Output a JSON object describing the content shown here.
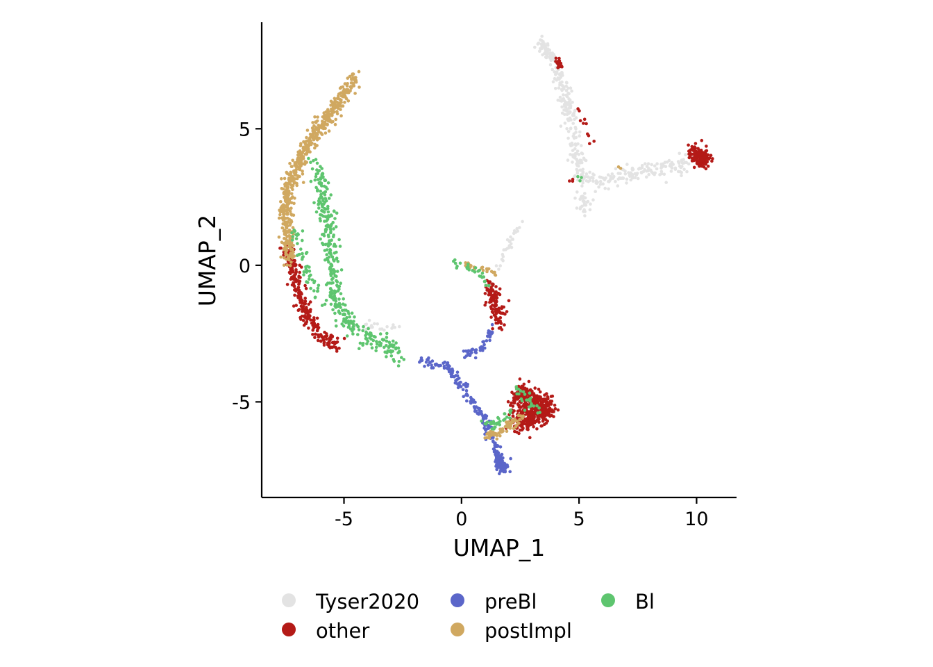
{
  "chart_data": {
    "type": "scatter",
    "title": "",
    "xlabel": "UMAP_1",
    "ylabel": "UMAP_2",
    "xlim": [
      -8.5,
      11.7
    ],
    "ylim": [
      -8.5,
      8.9
    ],
    "xticks": [
      -5,
      0,
      5,
      10
    ],
    "yticks": [
      -5,
      0,
      5
    ],
    "xtick_labels": [
      "-5",
      "0",
      "5",
      "10"
    ],
    "ytick_labels": [
      "-5",
      "0",
      "5"
    ],
    "grid": false,
    "legend_position": "bottom",
    "series": [
      {
        "name": "Tyser2020",
        "color": "#e3e3e3",
        "clusters": [
          {
            "path": [
              [
                3.4,
                8.0
              ],
              [
                3.9,
                7.5
              ],
              [
                4.4,
                6.2
              ],
              [
                4.8,
                5.0
              ],
              [
                4.9,
                4.0
              ],
              [
                5.2,
                3.2
              ],
              [
                6.0,
                3.0
              ],
              [
                7.0,
                3.3
              ],
              [
                8.0,
                3.5
              ],
              [
                9.0,
                3.6
              ],
              [
                9.6,
                3.8
              ]
            ],
            "spread": 0.28,
            "n": 360
          },
          {
            "path": [
              [
                3.3,
                8.3
              ],
              [
                3.9,
                7.6
              ]
            ],
            "spread": 0.2,
            "n": 40
          },
          {
            "path": [
              [
                5.0,
                2.8
              ],
              [
                5.3,
                1.9
              ]
            ],
            "spread": 0.25,
            "n": 30
          },
          {
            "path": [
              [
                2.6,
                1.6
              ],
              [
                2.2,
                1.0
              ],
              [
                1.8,
                0.4
              ],
              [
                1.5,
                -0.1
              ]
            ],
            "spread": 0.12,
            "n": 28
          },
          {
            "path": [
              [
                -4.5,
                -2.1
              ],
              [
                -3.2,
                -2.3
              ],
              [
                -2.6,
                -2.3
              ]
            ],
            "spread": 0.2,
            "n": 20
          }
        ]
      },
      {
        "name": "other",
        "color": "#b41a17",
        "clusters": [
          {
            "path": [
              [
                2.4,
                -4.7
              ],
              [
                3.1,
                -5.0
              ],
              [
                3.6,
                -5.2
              ],
              [
                2.9,
                -5.6
              ],
              [
                2.3,
                -5.8
              ]
            ],
            "spread": 0.38,
            "n": 560
          },
          {
            "path": [
              [
                9.8,
                4.2
              ],
              [
                10.4,
                3.8
              ]
            ],
            "spread": 0.25,
            "n": 160
          },
          {
            "path": [
              [
                1.2,
                -0.7
              ],
              [
                1.5,
                -1.5
              ],
              [
                1.6,
                -2.2
              ]
            ],
            "spread": 0.28,
            "n": 110
          },
          {
            "path": [
              [
                -7.4,
                0.7
              ],
              [
                -7.0,
                -0.8
              ],
              [
                -6.5,
                -2.0
              ],
              [
                -5.8,
                -2.7
              ],
              [
                -5.2,
                -2.9
              ]
            ],
            "spread": 0.26,
            "n": 260
          },
          {
            "path": [
              [
                4.1,
                7.6
              ],
              [
                4.2,
                7.3
              ]
            ],
            "spread": 0.12,
            "n": 18
          },
          {
            "path": [
              [
                4.9,
                5.8
              ],
              [
                5.3,
                5.0
              ],
              [
                5.5,
                4.5
              ]
            ],
            "spread": 0.15,
            "n": 10
          },
          {
            "path": [
              [
                4.6,
                3.1
              ],
              [
                4.7,
                2.9
              ]
            ],
            "spread": 0.1,
            "n": 3
          }
        ]
      },
      {
        "name": "preBl",
        "color": "#5b66c9",
        "clusters": [
          {
            "path": [
              [
                -1.8,
                -3.5
              ],
              [
                -0.6,
                -3.7
              ],
              [
                0.0,
                -4.4
              ],
              [
                0.4,
                -4.9
              ],
              [
                0.9,
                -5.5
              ],
              [
                1.2,
                -6.2
              ],
              [
                1.6,
                -6.8
              ],
              [
                1.7,
                -7.3
              ]
            ],
            "spread": 0.16,
            "n": 180
          },
          {
            "path": [
              [
                1.5,
                -7.0
              ],
              [
                1.8,
                -7.5
              ]
            ],
            "spread": 0.2,
            "n": 80
          },
          {
            "path": [
              [
                0.1,
                -3.3
              ],
              [
                0.9,
                -3.0
              ],
              [
                1.2,
                -2.6
              ],
              [
                1.3,
                -2.2
              ]
            ],
            "spread": 0.14,
            "n": 50
          }
        ]
      },
      {
        "name": "postImpl",
        "color": "#d0a860",
        "clusters": [
          {
            "path": [
              [
                -4.5,
                6.9
              ],
              [
                -5.0,
                6.3
              ],
              [
                -5.6,
                5.5
              ],
              [
                -6.2,
                4.8
              ],
              [
                -6.8,
                4.0
              ],
              [
                -7.3,
                3.0
              ],
              [
                -7.5,
                2.0
              ],
              [
                -7.4,
                1.0
              ],
              [
                -7.3,
                0.2
              ]
            ],
            "spread": 0.26,
            "n": 560
          },
          {
            "path": [
              [
                0.1,
                0.0
              ],
              [
                0.7,
                -0.1
              ],
              [
                1.2,
                -0.2
              ],
              [
                1.5,
                -0.4
              ]
            ],
            "spread": 0.12,
            "n": 30
          },
          {
            "path": [
              [
                1.0,
                -6.3
              ],
              [
                1.6,
                -6.1
              ],
              [
                2.2,
                -5.8
              ],
              [
                2.6,
                -5.5
              ]
            ],
            "spread": 0.15,
            "n": 60
          },
          {
            "path": [
              [
                6.7,
                3.6
              ],
              [
                6.8,
                3.5
              ]
            ],
            "spread": 0.05,
            "n": 2
          }
        ]
      },
      {
        "name": "Bl",
        "color": "#5ec56f",
        "clusters": [
          {
            "path": [
              [
                -6.2,
                3.8
              ],
              [
                -6.0,
                3.2
              ],
              [
                -5.9,
                2.3
              ],
              [
                -5.7,
                1.6
              ],
              [
                -5.5,
                0.6
              ],
              [
                -5.5,
                -0.8
              ],
              [
                -5.3,
                -1.5
              ],
              [
                -4.6,
                -2.3
              ],
              [
                -3.8,
                -2.7
              ],
              [
                -3.0,
                -3.0
              ],
              [
                -2.7,
                -3.5
              ]
            ],
            "spread": 0.32,
            "n": 360
          },
          {
            "path": [
              [
                -7.2,
                1.4
              ],
              [
                -6.9,
                0.6
              ],
              [
                -6.4,
                -0.5
              ],
              [
                -6.0,
                -1.5
              ]
            ],
            "spread": 0.22,
            "n": 50
          },
          {
            "path": [
              [
                -0.4,
                0.1
              ],
              [
                0.4,
                -0.1
              ],
              [
                0.9,
                -0.4
              ],
              [
                1.2,
                -0.8
              ]
            ],
            "spread": 0.12,
            "n": 30
          },
          {
            "path": [
              [
                0.8,
                -5.7
              ],
              [
                1.4,
                -5.9
              ],
              [
                2.2,
                -5.4
              ]
            ],
            "spread": 0.15,
            "n": 30
          },
          {
            "path": [
              [
                2.3,
                -4.5
              ],
              [
                2.8,
                -4.9
              ],
              [
                3.3,
                -5.4
              ]
            ],
            "spread": 0.3,
            "n": 25
          },
          {
            "path": [
              [
                5.0,
                3.2
              ],
              [
                5.1,
                3.0
              ]
            ],
            "spread": 0.08,
            "n": 3
          }
        ]
      }
    ]
  },
  "legend": {
    "items": [
      {
        "label": "Tyser2020",
        "color": "#e3e3e3"
      },
      {
        "label": "other",
        "color": "#b41a17"
      },
      {
        "label": "preBl",
        "color": "#5b66c9"
      },
      {
        "label": "postImpl",
        "color": "#d0a860"
      },
      {
        "label": "Bl",
        "color": "#5ec56f"
      }
    ]
  }
}
